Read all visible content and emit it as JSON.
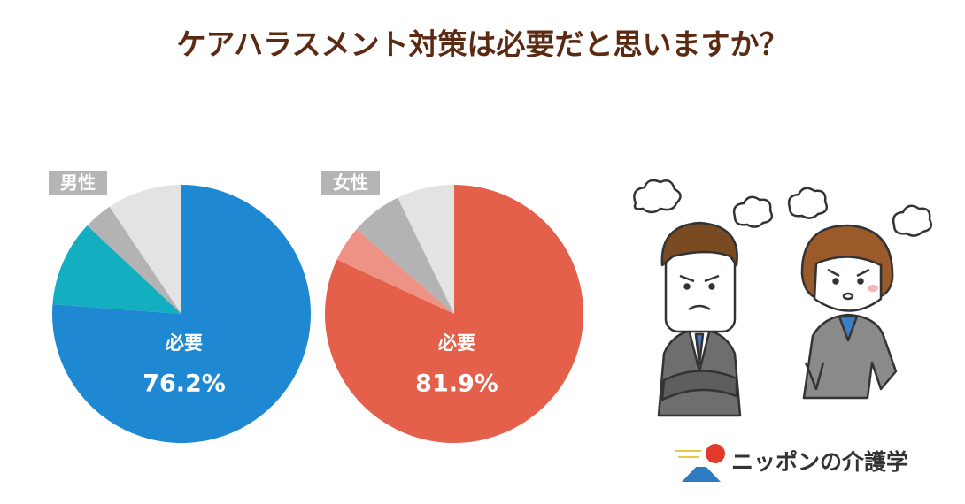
{
  "title": "ケアハラスメント対策は必要だと思いますか？",
  "chart_data": [
    {
      "type": "pie",
      "label": "男性",
      "categories": [
        "必要",
        null,
        null,
        null
      ],
      "values": [
        76.2,
        10.8,
        3.6,
        9.4
      ],
      "value_labels": [
        "76.2%",
        null,
        null,
        null
      ],
      "colors": [
        "#1f88d2",
        "#13aec0",
        "#b3b3b3",
        "#e3e3e3"
      ]
    },
    {
      "type": "pie",
      "label": "女性",
      "categories": [
        "必要",
        null,
        null,
        null
      ],
      "values": [
        81.9,
        4.5,
        6.4,
        7.2
      ],
      "value_labels": [
        "81.9%",
        null,
        null,
        null
      ],
      "colors": [
        "#e4604b",
        "#ee9286",
        "#b3b3b3",
        "#e3e3e3"
      ]
    }
  ],
  "logo": "ニッポンの介護学"
}
